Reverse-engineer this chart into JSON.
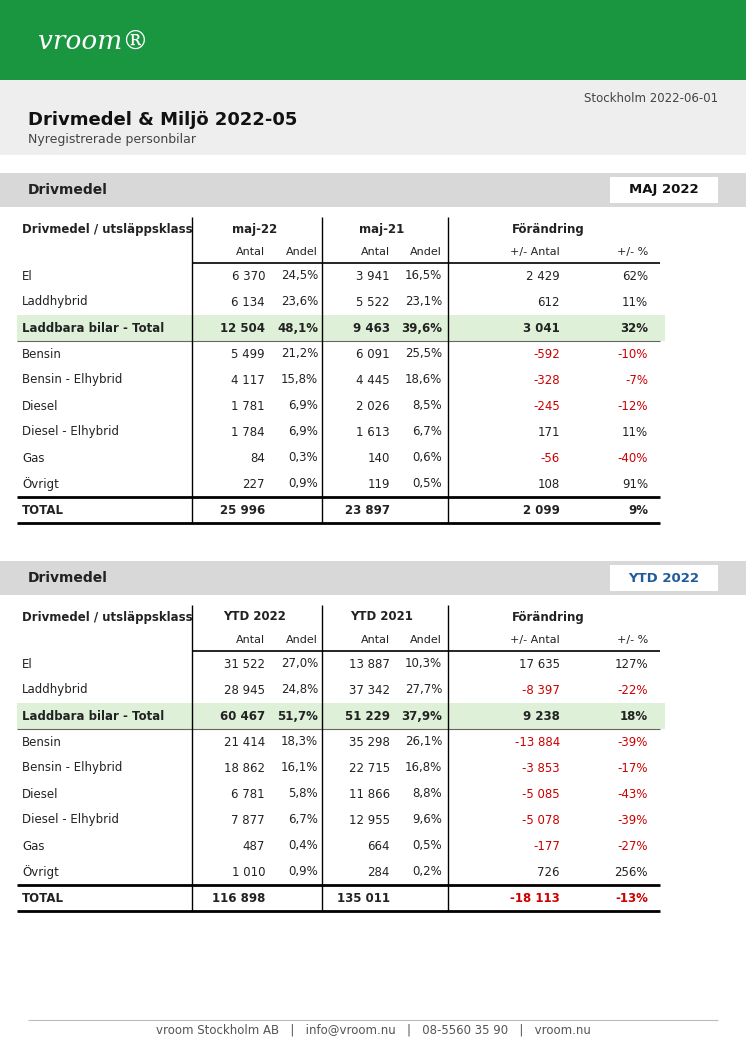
{
  "title": "Drivmedel & Miljö 2022-05",
  "subtitle": "Nyregistrerade personbilar",
  "date": "Stockholm 2022-06-01",
  "header_green": "#1a9641",
  "bg_light": "#eeeeee",
  "bg_white": "#ffffff",
  "text_dark": "#222222",
  "text_red": "#cc0000",
  "text_blue": "#1f5c99",
  "green_row_bg": "#dff0d8",
  "section_bar_color": "#d8d8d8",
  "section1_header": "Drivmedel",
  "section1_badge": "MAJ 2022",
  "section2_header": "Drivmedel",
  "section2_badge": "YTD 2022",
  "col_headers_1": [
    "maj-22",
    "maj-21",
    "Förändring"
  ],
  "col_headers_2": [
    "YTD 2022",
    "YTD 2021",
    "Förändring"
  ],
  "row_header": "Drivmedel / utsläppsklass",
  "table1_rows": [
    {
      "label": "El",
      "v1": "6 370",
      "p1": "24,5%",
      "v2": "3 941",
      "p2": "16,5%",
      "dv": "2 429",
      "dp": "62%",
      "dv_red": false,
      "dp_red": false,
      "total_row": false
    },
    {
      "label": "Laddhybrid",
      "v1": "6 134",
      "p1": "23,6%",
      "v2": "5 522",
      "p2": "23,1%",
      "dv": "612",
      "dp": "11%",
      "dv_red": false,
      "dp_red": false,
      "total_row": false
    },
    {
      "label": "Laddbara bilar - Total",
      "v1": "12 504",
      "p1": "48,1%",
      "v2": "9 463",
      "p2": "39,6%",
      "dv": "3 041",
      "dp": "32%",
      "dv_red": false,
      "dp_red": false,
      "total_row": true
    },
    {
      "label": "Bensin",
      "v1": "5 499",
      "p1": "21,2%",
      "v2": "6 091",
      "p2": "25,5%",
      "dv": "-592",
      "dp": "-10%",
      "dv_red": true,
      "dp_red": true,
      "total_row": false
    },
    {
      "label": "Bensin - Elhybrid",
      "v1": "4 117",
      "p1": "15,8%",
      "v2": "4 445",
      "p2": "18,6%",
      "dv": "-328",
      "dp": "-7%",
      "dv_red": true,
      "dp_red": true,
      "total_row": false
    },
    {
      "label": "Diesel",
      "v1": "1 781",
      "p1": "6,9%",
      "v2": "2 026",
      "p2": "8,5%",
      "dv": "-245",
      "dp": "-12%",
      "dv_red": true,
      "dp_red": true,
      "total_row": false
    },
    {
      "label": "Diesel - Elhybrid",
      "v1": "1 784",
      "p1": "6,9%",
      "v2": "1 613",
      "p2": "6,7%",
      "dv": "171",
      "dp": "11%",
      "dv_red": false,
      "dp_red": false,
      "total_row": false
    },
    {
      "label": "Gas",
      "v1": "84",
      "p1": "0,3%",
      "v2": "140",
      "p2": "0,6%",
      "dv": "-56",
      "dp": "-40%",
      "dv_red": true,
      "dp_red": true,
      "total_row": false
    },
    {
      "label": "Övrigt",
      "v1": "227",
      "p1": "0,9%",
      "v2": "119",
      "p2": "0,5%",
      "dv": "108",
      "dp": "91%",
      "dv_red": false,
      "dp_red": false,
      "total_row": false
    }
  ],
  "table1_total": {
    "label": "TOTAL",
    "v1": "25 996",
    "v2": "23 897",
    "dv": "2 099",
    "dp": "9%",
    "dv_red": false,
    "dp_red": false
  },
  "table2_rows": [
    {
      "label": "El",
      "v1": "31 522",
      "p1": "27,0%",
      "v2": "13 887",
      "p2": "10,3%",
      "dv": "17 635",
      "dp": "127%",
      "dv_red": false,
      "dp_red": false,
      "total_row": false
    },
    {
      "label": "Laddhybrid",
      "v1": "28 945",
      "p1": "24,8%",
      "v2": "37 342",
      "p2": "27,7%",
      "dv": "-8 397",
      "dp": "-22%",
      "dv_red": true,
      "dp_red": true,
      "total_row": false
    },
    {
      "label": "Laddbara bilar - Total",
      "v1": "60 467",
      "p1": "51,7%",
      "v2": "51 229",
      "p2": "37,9%",
      "dv": "9 238",
      "dp": "18%",
      "dv_red": false,
      "dp_red": false,
      "total_row": true
    },
    {
      "label": "Bensin",
      "v1": "21 414",
      "p1": "18,3%",
      "v2": "35 298",
      "p2": "26,1%",
      "dv": "-13 884",
      "dp": "-39%",
      "dv_red": true,
      "dp_red": true,
      "total_row": false
    },
    {
      "label": "Bensin - Elhybrid",
      "v1": "18 862",
      "p1": "16,1%",
      "v2": "22 715",
      "p2": "16,8%",
      "dv": "-3 853",
      "dp": "-17%",
      "dv_red": true,
      "dp_red": true,
      "total_row": false
    },
    {
      "label": "Diesel",
      "v1": "6 781",
      "p1": "5,8%",
      "v2": "11 866",
      "p2": "8,8%",
      "dv": "-5 085",
      "dp": "-43%",
      "dv_red": true,
      "dp_red": true,
      "total_row": false
    },
    {
      "label": "Diesel - Elhybrid",
      "v1": "7 877",
      "p1": "6,7%",
      "v2": "12 955",
      "p2": "9,6%",
      "dv": "-5 078",
      "dp": "-39%",
      "dv_red": true,
      "dp_red": true,
      "total_row": false
    },
    {
      "label": "Gas",
      "v1": "487",
      "p1": "0,4%",
      "v2": "664",
      "p2": "0,5%",
      "dv": "-177",
      "dp": "-27%",
      "dv_red": true,
      "dp_red": true,
      "total_row": false
    },
    {
      "label": "Övrigt",
      "v1": "1 010",
      "p1": "0,9%",
      "v2": "284",
      "p2": "0,2%",
      "dv": "726",
      "dp": "256%",
      "dv_red": false,
      "dp_red": false,
      "total_row": false
    }
  ],
  "table2_total": {
    "label": "TOTAL",
    "v1": "116 898",
    "v2": "135 011",
    "dv": "-18 113",
    "dp": "-13%",
    "dv_red": true,
    "dp_red": true
  },
  "footer": "vroom Stockholm AB   |   info@vroom.nu   |   08-5560 35 90   |   vroom.nu"
}
